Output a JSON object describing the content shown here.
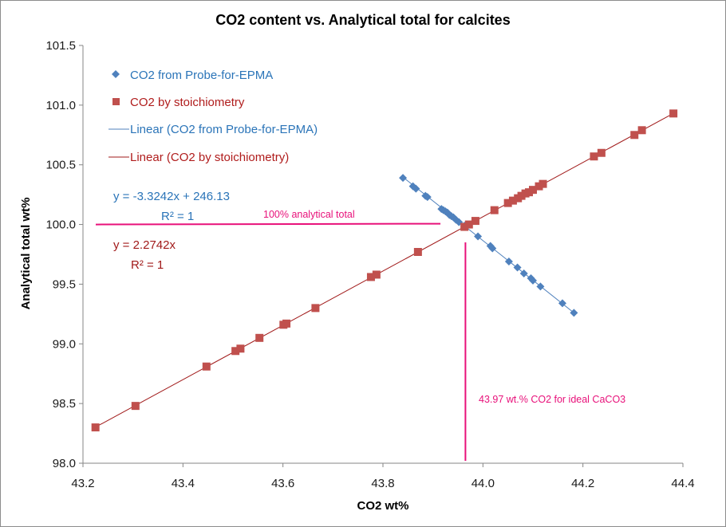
{
  "chart_data": {
    "type": "scatter",
    "title": "CO2 content vs. Analytical  total for calcites",
    "xlabel": "CO2 wt%",
    "ylabel": "Analytical total wt%",
    "xlim": [
      43.2,
      44.4
    ],
    "ylim": [
      98.0,
      101.5
    ],
    "x_ticks": [
      "43.2",
      "43.4",
      "43.6",
      "43.8",
      "44.0",
      "44.2",
      "44.4"
    ],
    "y_ticks": [
      "98.0",
      "98.5",
      "99.0",
      "99.5",
      "100.0",
      "100.5",
      "101.0",
      "101.5"
    ],
    "grid": false,
    "legend_position": "top-left",
    "series": [
      {
        "name": "CO2 from Probe-for-EPMA",
        "marker": "diamond",
        "color": "#4f81bd",
        "x": [
          43.84,
          43.86,
          43.866,
          43.885,
          43.889,
          43.917,
          43.921,
          43.925,
          43.929,
          43.933,
          43.937,
          43.941,
          43.946,
          43.952,
          43.963,
          43.99,
          44.015,
          44.019,
          44.052,
          44.069,
          44.082,
          44.096,
          44.1,
          44.115,
          44.159,
          44.182
        ],
        "y": [
          100.39,
          100.32,
          100.3,
          100.24,
          100.23,
          100.13,
          100.12,
          100.11,
          100.1,
          100.08,
          100.07,
          100.06,
          100.04,
          100.02,
          99.99,
          99.9,
          99.82,
          99.8,
          99.69,
          99.64,
          99.59,
          99.55,
          99.53,
          99.48,
          99.34,
          99.26
        ]
      },
      {
        "name": "CO2 by stoichiometry",
        "marker": "square",
        "color": "#c0504d",
        "x": [
          43.225,
          43.305,
          43.447,
          43.505,
          43.515,
          43.553,
          43.601,
          43.607,
          43.665,
          43.776,
          43.787,
          43.87,
          43.963,
          43.972,
          43.985,
          44.023,
          44.05,
          44.06,
          44.07,
          44.077,
          44.085,
          44.092,
          44.1,
          44.112,
          44.12,
          44.222,
          44.237,
          44.303,
          44.318,
          44.381
        ],
        "y": [
          98.3,
          98.48,
          98.81,
          98.94,
          98.96,
          99.05,
          99.16,
          99.17,
          99.3,
          99.56,
          99.58,
          99.77,
          99.98,
          100.0,
          100.03,
          100.12,
          100.18,
          100.2,
          100.22,
          100.24,
          100.26,
          100.27,
          100.29,
          100.32,
          100.34,
          100.57,
          100.6,
          100.75,
          100.79,
          100.93
        ]
      }
    ],
    "trendlines": [
      {
        "name": "Linear (CO2 from Probe-for-EPMA)",
        "color": "#4f81bd",
        "slope": -3.3242,
        "intercept": 246.13,
        "x_range": [
          43.84,
          44.182
        ],
        "equation": "y = -3.3242x + 246.13",
        "r2": "R² = 1"
      },
      {
        "name": "Linear (CO2 by stoichiometry)",
        "color": "#a11a1a",
        "slope": 2.2742,
        "intercept": 0,
        "x_range": [
          43.225,
          44.381
        ],
        "equation": "y = 2.2742x",
        "r2": "R² = 1"
      }
    ],
    "annotations": [
      {
        "text": "100% analytical total",
        "type": "hline",
        "value": 100.0,
        "x_from": 43.2,
        "x_to": 43.915,
        "color": "#e8117a"
      },
      {
        "text": "43.97 wt.% CO2 for ideal CaCO3",
        "type": "vline",
        "value": 43.965,
        "y_from": 98.0,
        "y_to": 99.85,
        "color": "#e8117a"
      }
    ]
  }
}
